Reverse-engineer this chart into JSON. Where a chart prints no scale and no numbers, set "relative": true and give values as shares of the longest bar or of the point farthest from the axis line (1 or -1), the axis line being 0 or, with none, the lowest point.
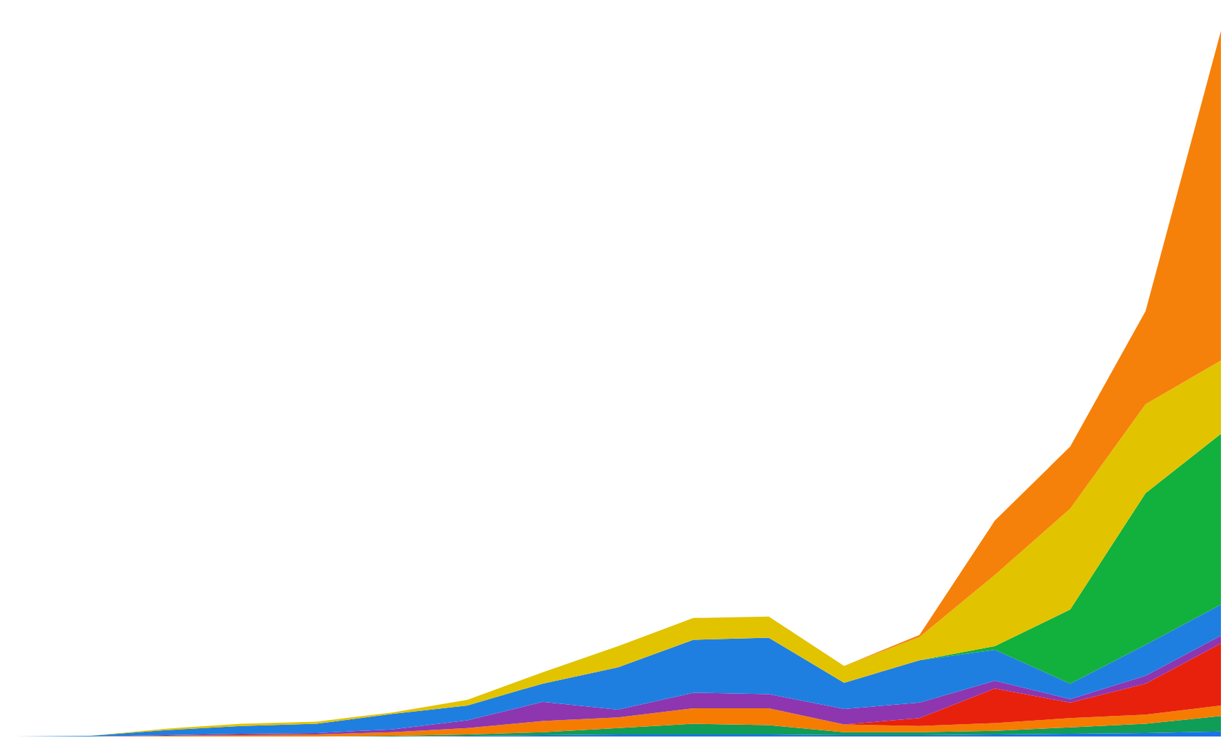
{
  "chart_data": {
    "type": "area",
    "stacked": true,
    "relative": true,
    "categories": [
      null,
      null,
      null,
      null,
      null,
      null,
      null,
      null,
      null,
      null,
      null,
      null,
      null,
      null,
      null,
      null,
      null
    ],
    "series": [
      {
        "color": "#1a73e8",
        "values": [
          0,
          0,
          0,
          0,
          0,
          0,
          0.001,
          0.002,
          0.003,
          0.003,
          0.003,
          0.002,
          0.002,
          0.003,
          0.004,
          0.005,
          0.007
        ]
      },
      {
        "color": "#0f9d58",
        "values": [
          0,
          0,
          0,
          0,
          0,
          0.001,
          0.002,
          0.004,
          0.009,
          0.015,
          0.013,
          0.004,
          0.004,
          0.005,
          0.009,
          0.013,
          0.022
        ]
      },
      {
        "color": "#f57c00",
        "values": [
          0,
          0,
          0.001,
          0.002,
          0.003,
          0.005,
          0.009,
          0.016,
          0.015,
          0.022,
          0.024,
          0.011,
          0.009,
          0.011,
          0.013,
          0.013,
          0.015
        ]
      },
      {
        "color": "#e8210c",
        "values": [
          0,
          0,
          0,
          0,
          0,
          0,
          0,
          0,
          0,
          0,
          0,
          0,
          0.011,
          0.049,
          0.022,
          0.044,
          0.088
        ]
      },
      {
        "color": "#8e35b0",
        "values": [
          0,
          0,
          0.001,
          0.002,
          0.002,
          0.004,
          0.011,
          0.027,
          0.011,
          0.022,
          0.02,
          0.022,
          0.022,
          0.011,
          0.005,
          0.011,
          0.011
        ]
      },
      {
        "color": "#1f7fe0",
        "values": [
          0,
          0.001,
          0.007,
          0.011,
          0.013,
          0.022,
          0.021,
          0.026,
          0.06,
          0.075,
          0.08,
          0.037,
          0.06,
          0.044,
          0.022,
          0.044,
          0.044
        ]
      },
      {
        "color": "#12b03c",
        "values": [
          0,
          0,
          0,
          0,
          0,
          0,
          0,
          0,
          0,
          0,
          0,
          0,
          0,
          0.005,
          0.105,
          0.215,
          0.242
        ]
      },
      {
        "color": "#e2c300",
        "values": [
          0,
          0,
          0.002,
          0.003,
          0.003,
          0.002,
          0.008,
          0.016,
          0.03,
          0.031,
          0.03,
          0.024,
          0.033,
          0.101,
          0.143,
          0.126,
          0.104
        ]
      },
      {
        "color": "#f5810a",
        "values": [
          0,
          0,
          0,
          0,
          0,
          0,
          0,
          0,
          0,
          0,
          0,
          0,
          0.003,
          0.077,
          0.088,
          0.132,
          0.467
        ]
      }
    ]
  }
}
